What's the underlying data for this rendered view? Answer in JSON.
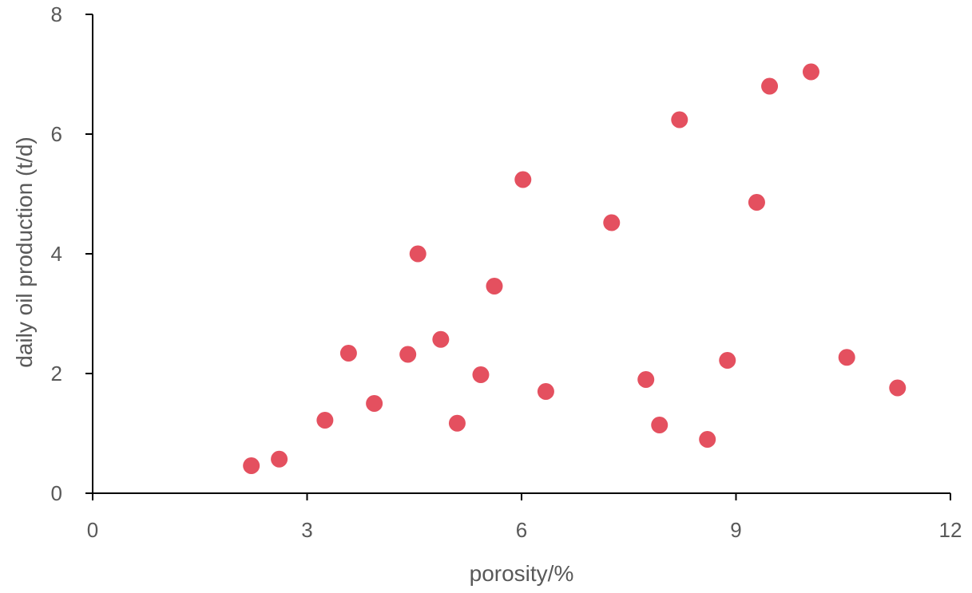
{
  "chart_data": {
    "type": "scatter",
    "title": "",
    "xlabel": "porosity/%",
    "ylabel": "daily oil production (t/d)",
    "xlim": [
      0,
      12
    ],
    "ylim": [
      0,
      8
    ],
    "x_ticks": [
      0,
      3,
      6,
      9,
      12
    ],
    "y_ticks": [
      0,
      2,
      4,
      6,
      8
    ],
    "x_tick_labels": [
      "0",
      "3",
      "6",
      "9",
      "12"
    ],
    "y_tick_labels": [
      "0",
      "2",
      "4",
      "6",
      "8"
    ],
    "grid": false,
    "legend": "none",
    "marker_color": "#E4505F",
    "axis_color": "#000000",
    "text_color": "#595959",
    "series": [
      {
        "points": [
          {
            "x": 2.22,
            "y": 0.46
          },
          {
            "x": 2.61,
            "y": 0.57
          },
          {
            "x": 3.25,
            "y": 1.22
          },
          {
            "x": 3.58,
            "y": 2.34
          },
          {
            "x": 3.94,
            "y": 1.5
          },
          {
            "x": 4.41,
            "y": 2.32
          },
          {
            "x": 4.55,
            "y": 4.0
          },
          {
            "x": 4.87,
            "y": 2.57
          },
          {
            "x": 5.1,
            "y": 1.17
          },
          {
            "x": 5.43,
            "y": 1.98
          },
          {
            "x": 5.62,
            "y": 3.46
          },
          {
            "x": 6.02,
            "y": 5.24
          },
          {
            "x": 6.34,
            "y": 1.7
          },
          {
            "x": 7.26,
            "y": 4.52
          },
          {
            "x": 7.74,
            "y": 1.9
          },
          {
            "x": 7.93,
            "y": 1.14
          },
          {
            "x": 8.21,
            "y": 6.24
          },
          {
            "x": 8.6,
            "y": 0.9
          },
          {
            "x": 8.88,
            "y": 2.22
          },
          {
            "x": 9.29,
            "y": 4.86
          },
          {
            "x": 9.47,
            "y": 6.8
          },
          {
            "x": 10.05,
            "y": 7.04
          },
          {
            "x": 10.55,
            "y": 2.27
          },
          {
            "x": 11.26,
            "y": 1.76
          }
        ]
      }
    ]
  }
}
